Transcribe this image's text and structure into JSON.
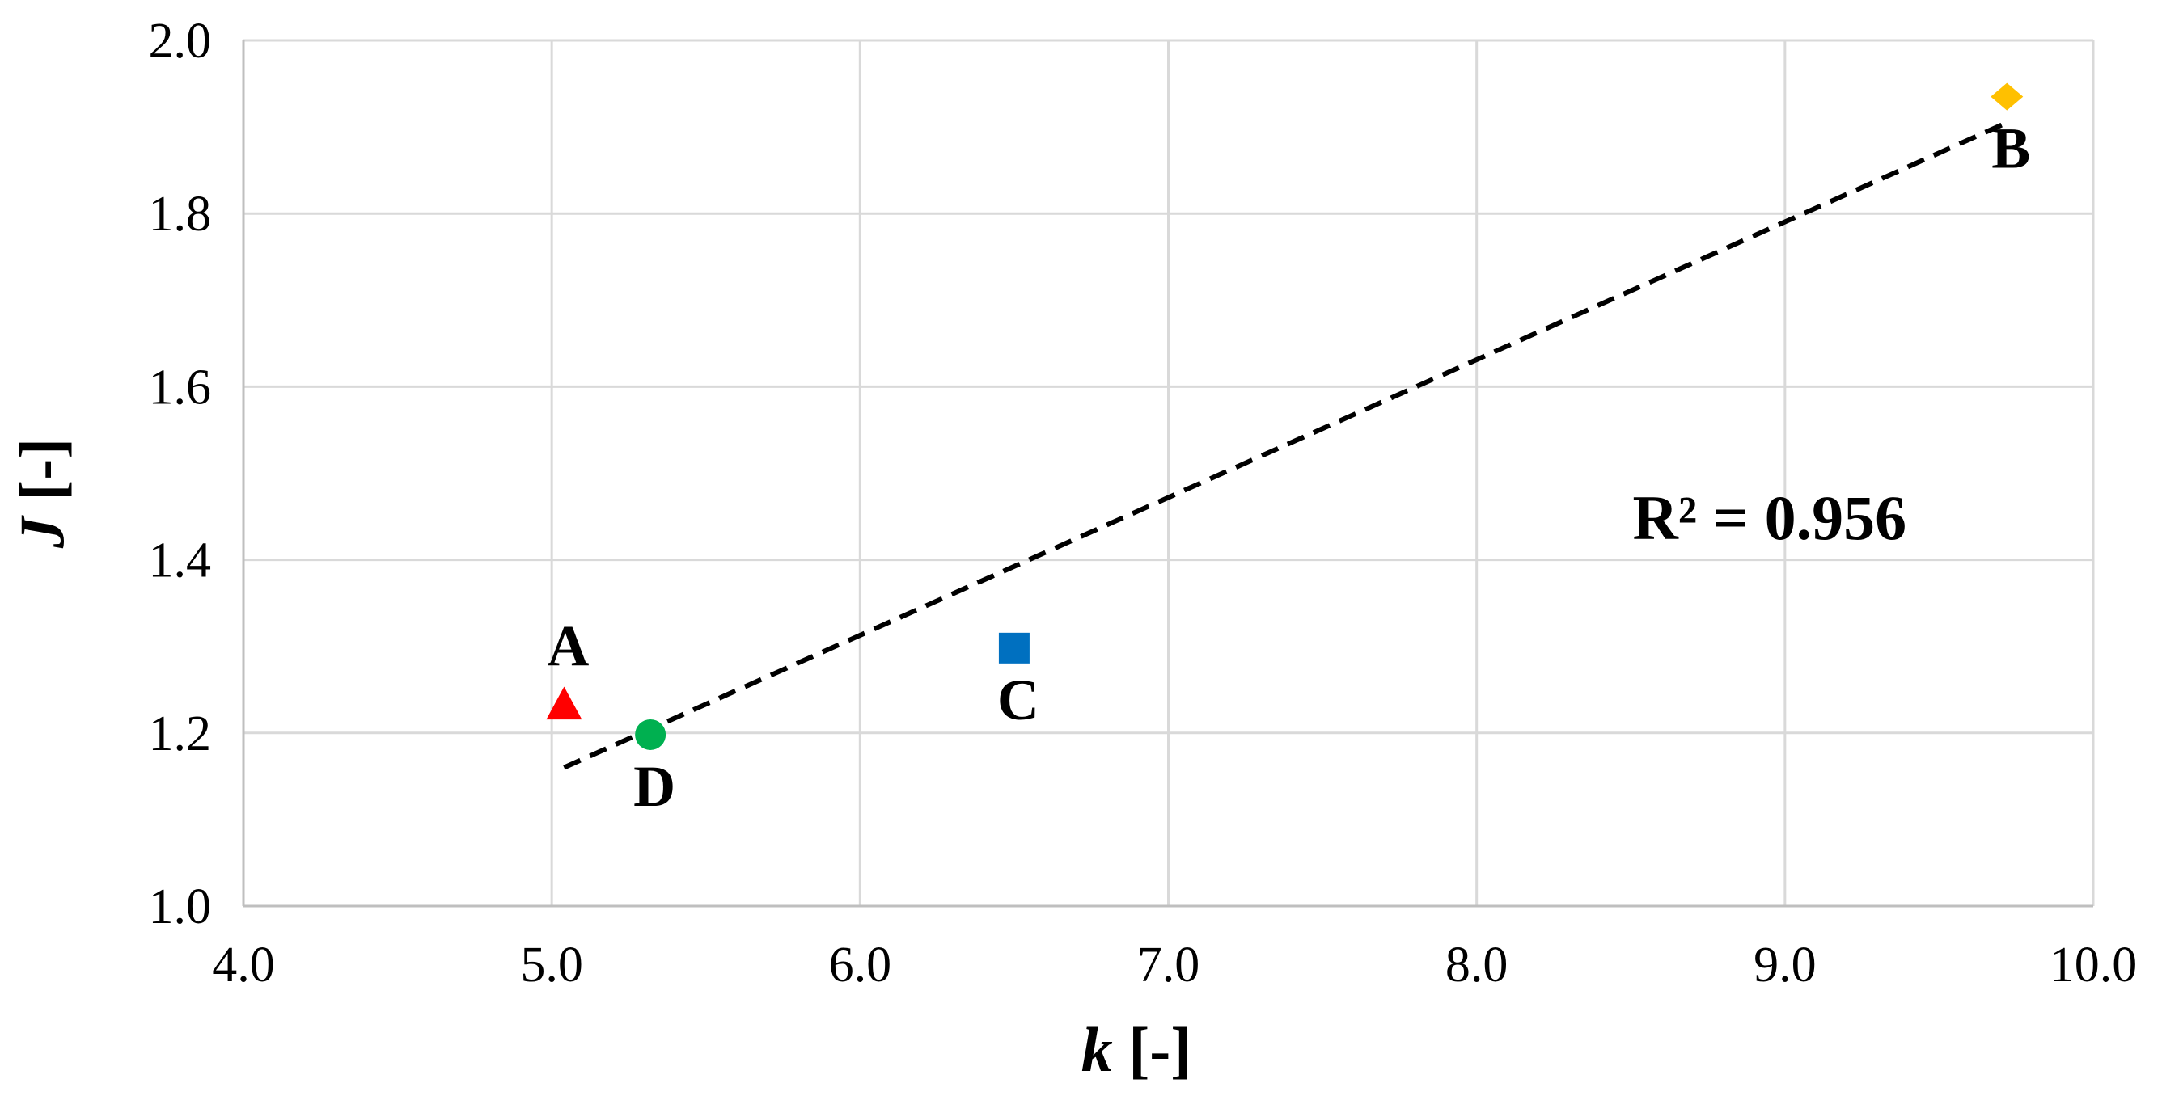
{
  "chart_data": {
    "type": "scatter",
    "title": "",
    "xlabel": {
      "var": "k",
      "unit": " [-]"
    },
    "ylabel": {
      "var": "J",
      "unit": " [-]"
    },
    "xlim": [
      4.0,
      10.0
    ],
    "ylim": [
      1.0,
      2.0
    ],
    "x_ticks": [
      4.0,
      5.0,
      6.0,
      7.0,
      8.0,
      9.0,
      10.0
    ],
    "y_ticks": [
      1.0,
      1.2,
      1.4,
      1.6,
      1.8,
      2.0
    ],
    "x_tick_labels": [
      "4.0",
      "5.0",
      "6.0",
      "7.0",
      "8.0",
      "9.0",
      "10.0"
    ],
    "y_tick_labels": [
      "1.0",
      "1.2",
      "1.4",
      "1.6",
      "1.8",
      "2.0"
    ],
    "grid": true,
    "legend": "none",
    "points": [
      {
        "label": "A",
        "x": 5.04,
        "y": 1.233,
        "marker": "triangle",
        "color": "#FF0000",
        "label_position": "above"
      },
      {
        "label": "B",
        "x": 9.72,
        "y": 1.935,
        "marker": "diamond",
        "color": "#FFC000",
        "label_position": "below"
      },
      {
        "label": "C",
        "x": 6.5,
        "y": 1.298,
        "marker": "square",
        "color": "#0070C0",
        "label_position": "below"
      },
      {
        "label": "D",
        "x": 5.32,
        "y": 1.198,
        "marker": "circle",
        "color": "#00B050",
        "label_position": "below"
      }
    ],
    "trendline": {
      "style": "dashed",
      "color": "#000000",
      "x": [
        5.04,
        9.72
      ],
      "y": [
        1.16,
        1.905
      ]
    },
    "annotation": {
      "text": "R² = 0.956",
      "x": 8.95,
      "y": 1.45
    }
  }
}
